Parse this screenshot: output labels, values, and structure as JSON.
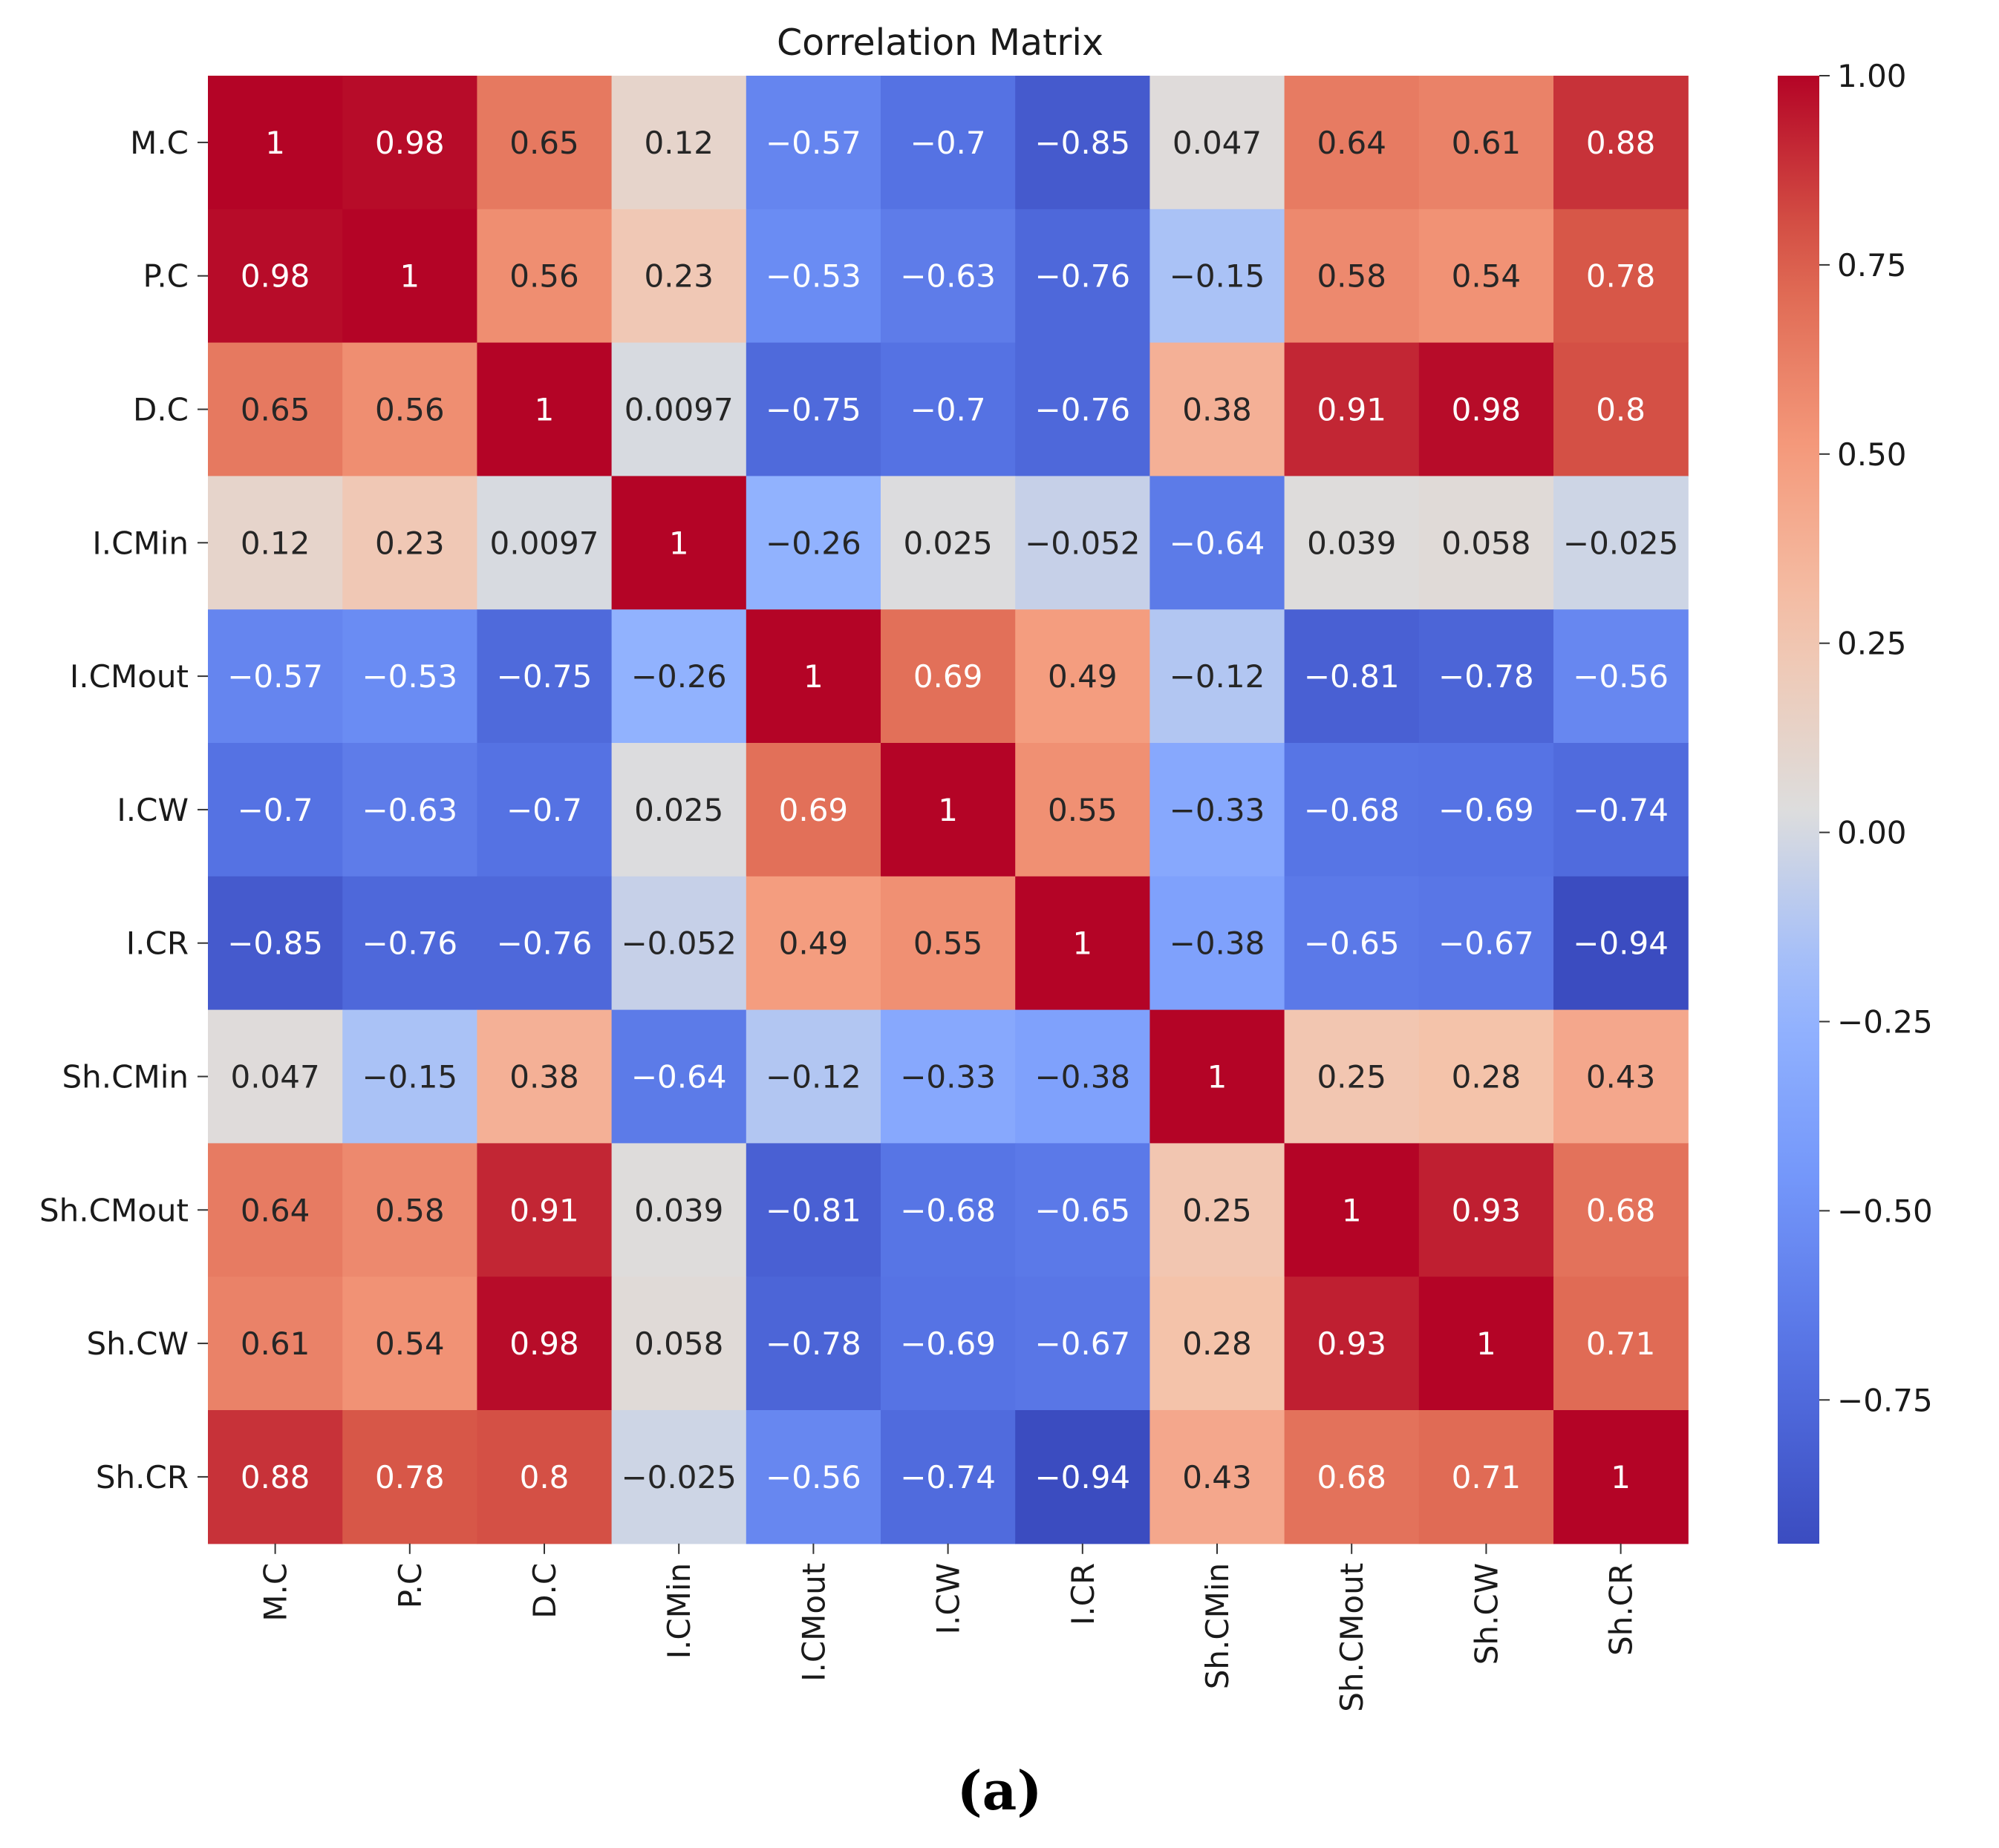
{
  "chart_data": {
    "type": "heatmap",
    "title": "Correlation Matrix",
    "caption": "(a)",
    "xlabel": "",
    "ylabel": "",
    "labels": [
      "M.C",
      "P.C",
      "D.C",
      "I.CMin",
      "I.CMout",
      "I.CW",
      "I.CR",
      "Sh.CMin",
      "Sh.CMout",
      "Sh.CW",
      "Sh.CR"
    ],
    "matrix": [
      [
        1,
        0.98,
        0.65,
        0.12,
        -0.57,
        -0.7,
        -0.85,
        0.047,
        0.64,
        0.61,
        0.88
      ],
      [
        0.98,
        1,
        0.56,
        0.23,
        -0.53,
        -0.63,
        -0.76,
        -0.15,
        0.58,
        0.54,
        0.78
      ],
      [
        0.65,
        0.56,
        1,
        0.0097,
        -0.75,
        -0.7,
        -0.76,
        0.38,
        0.91,
        0.98,
        0.8
      ],
      [
        0.12,
        0.23,
        0.0097,
        1,
        -0.26,
        0.025,
        -0.052,
        -0.64,
        0.039,
        0.058,
        -0.025
      ],
      [
        -0.57,
        -0.53,
        -0.75,
        -0.26,
        1,
        0.69,
        0.49,
        -0.12,
        -0.81,
        -0.78,
        -0.56
      ],
      [
        -0.7,
        -0.63,
        -0.7,
        0.025,
        0.69,
        1,
        0.55,
        -0.33,
        -0.68,
        -0.69,
        -0.74
      ],
      [
        -0.85,
        -0.76,
        -0.76,
        -0.052,
        0.49,
        0.55,
        1,
        -0.38,
        -0.65,
        -0.67,
        -0.94
      ],
      [
        0.047,
        -0.15,
        0.38,
        -0.64,
        -0.12,
        -0.33,
        -0.38,
        1,
        0.25,
        0.28,
        0.43
      ],
      [
        0.64,
        0.58,
        0.91,
        0.039,
        -0.81,
        -0.68,
        -0.65,
        0.25,
        1,
        0.93,
        0.68
      ],
      [
        0.61,
        0.54,
        0.98,
        0.058,
        -0.78,
        -0.69,
        -0.67,
        0.28,
        0.93,
        1,
        0.71
      ],
      [
        0.88,
        0.78,
        0.8,
        -0.025,
        -0.56,
        -0.74,
        -0.94,
        0.43,
        0.68,
        0.71,
        1
      ]
    ],
    "colormap": "coolwarm",
    "vmin": -0.94,
    "vmax": 1.0,
    "colorbar_ticks": [
      1.0,
      0.75,
      0.5,
      0.25,
      0.0,
      -0.25,
      -0.5,
      -0.75
    ],
    "colorbar_tick_labels": [
      "1.00",
      "0.75",
      "0.50",
      "0.25",
      "0.00",
      "−0.25",
      "−0.50",
      "−0.75"
    ],
    "colorbar_position": "right"
  }
}
